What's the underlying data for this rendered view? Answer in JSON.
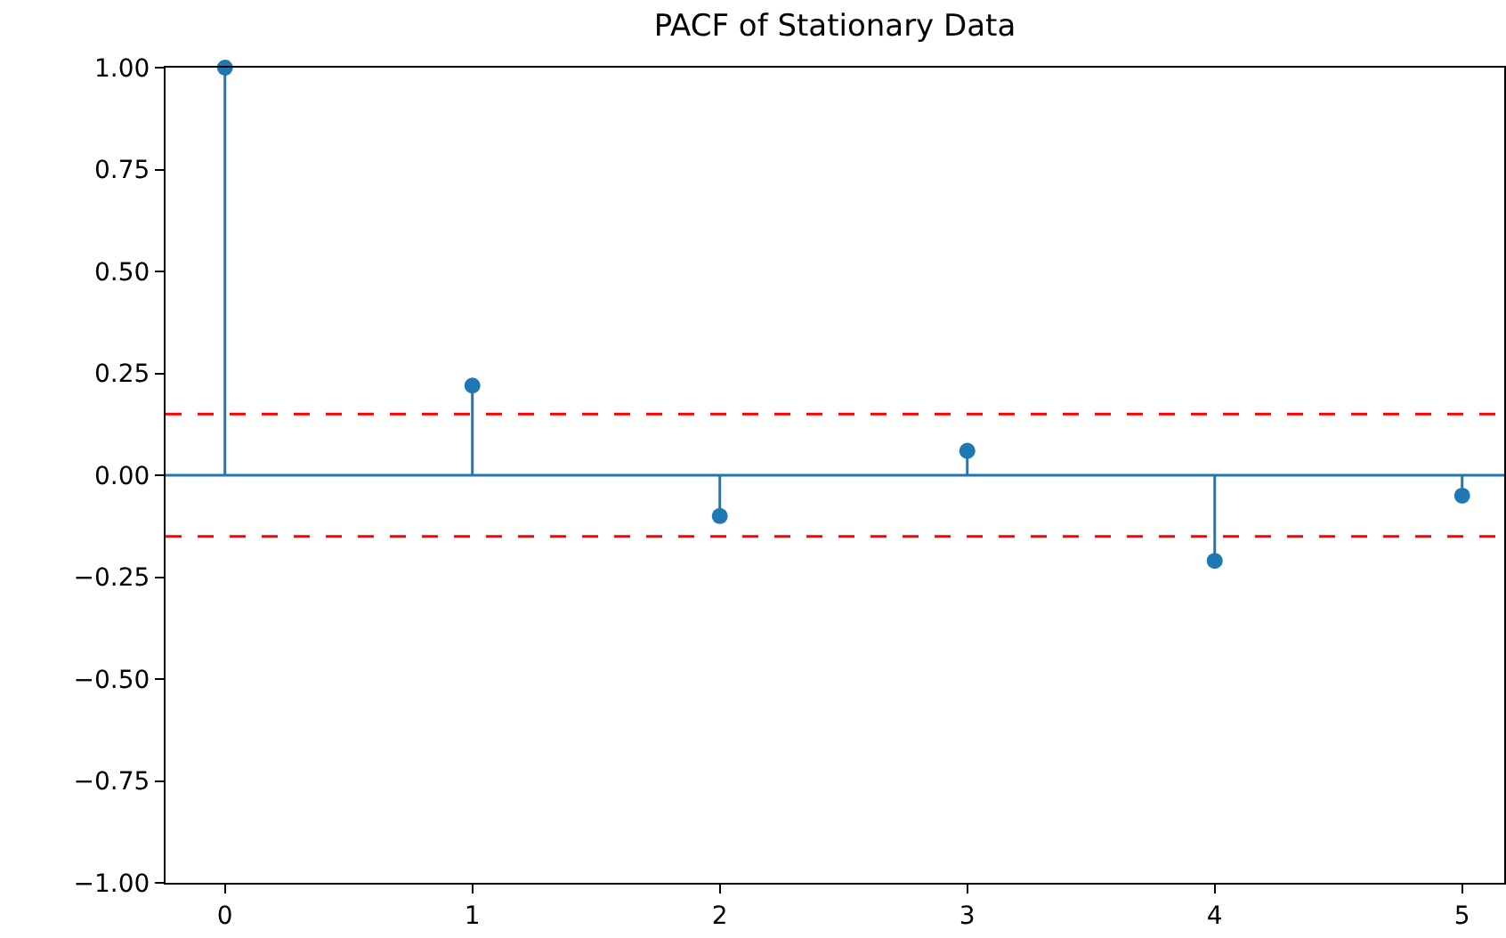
{
  "chart_data": {
    "type": "lollipop",
    "title": "PACF of Stationary Data",
    "x": [
      0,
      1,
      2,
      3,
      4,
      5
    ],
    "series": [
      {
        "color": "#1f77b4",
        "values": [
          1.0,
          0.22,
          -0.1,
          0.06,
          -0.21,
          -0.05
        ]
      }
    ],
    "xlim": [
      -0.24,
      5.17
    ],
    "xticks": [
      0,
      1,
      2,
      3,
      4,
      5
    ],
    "ylim": [
      -1.0,
      1.0
    ],
    "yticks": [
      {
        "value": -1.0,
        "label": "−1.00"
      },
      {
        "value": -0.75,
        "label": "−0.75"
      },
      {
        "value": -0.5,
        "label": "−0.50"
      },
      {
        "value": -0.25,
        "label": "−0.25"
      },
      {
        "value": 0.0,
        "label": "0.00"
      },
      {
        "value": 0.25,
        "label": "0.25"
      },
      {
        "value": 0.5,
        "label": "0.50"
      },
      {
        "value": 0.75,
        "label": "0.75"
      },
      {
        "value": 1.0,
        "label": "1.00"
      }
    ],
    "ref_lines": [
      {
        "axis": "y",
        "value": 0.0,
        "color": "#1f77b4",
        "line_style": "solid"
      },
      {
        "axis": "y",
        "value": 0.15,
        "color": "#ff0000",
        "line_style": "dashed"
      },
      {
        "axis": "y",
        "value": -0.15,
        "color": "#ff0000",
        "line_style": "dashed"
      }
    ],
    "legend": false,
    "marker": "circle"
  }
}
